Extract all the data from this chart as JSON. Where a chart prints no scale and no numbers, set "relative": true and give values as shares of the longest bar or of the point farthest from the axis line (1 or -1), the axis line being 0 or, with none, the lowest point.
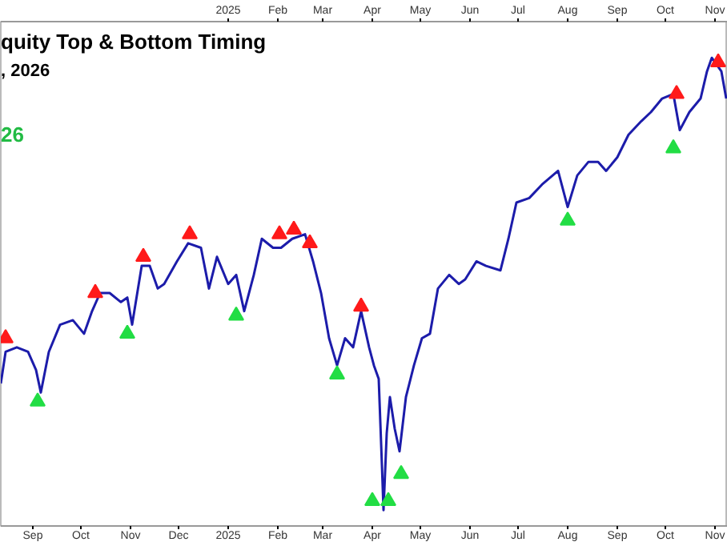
{
  "chart_data": {
    "type": "line",
    "title": "quity Top & Bottom Timing",
    "subtitle": ", 2026",
    "annotations": [
      "26"
    ],
    "relative": true,
    "xlim": [
      "2024-08-12",
      "2025-11-09"
    ],
    "xticks": [
      {
        "value": "2024-09-01",
        "label": "Sep"
      },
      {
        "value": "2024-10-01",
        "label": "Oct"
      },
      {
        "value": "2024-11-01",
        "label": "Nov"
      },
      {
        "value": "2024-12-01",
        "label": "Dec"
      },
      {
        "value": "2025-01-01",
        "label": "2025"
      },
      {
        "value": "2025-02-01",
        "label": "Feb"
      },
      {
        "value": "2025-03-01",
        "label": "Mar"
      },
      {
        "value": "2025-04-01",
        "label": "Apr"
      },
      {
        "value": "2025-05-01",
        "label": "May"
      },
      {
        "value": "2025-06-01",
        "label": "Jun"
      },
      {
        "value": "2025-07-01",
        "label": "Jul"
      },
      {
        "value": "2025-08-01",
        "label": "Aug"
      },
      {
        "value": "2025-09-01",
        "label": "Sep"
      },
      {
        "value": "2025-10-01",
        "label": "Oct"
      },
      {
        "value": "2025-11-01",
        "label": "Nov"
      }
    ],
    "x2lim": [
      "2024-08-12",
      "2025-11-09"
    ],
    "x2ticks": [
      {
        "value": "2025-01-01",
        "label": "2025"
      },
      {
        "value": "2025-02-01",
        "label": "Feb"
      },
      {
        "value": "2025-03-01",
        "label": "Mar"
      },
      {
        "value": "2025-04-01",
        "label": "Apr"
      },
      {
        "value": "2025-05-01",
        "label": "May"
      },
      {
        "value": "2025-06-01",
        "label": "Jun"
      },
      {
        "value": "2025-07-01",
        "label": "Jul"
      },
      {
        "value": "2025-08-01",
        "label": "Aug"
      },
      {
        "value": "2025-09-01",
        "label": "Sep"
      },
      {
        "value": "2025-10-01",
        "label": "Oct"
      },
      {
        "value": "2025-11-01",
        "label": "Nov"
      }
    ],
    "grid": false,
    "series": [
      {
        "color": "#1c1caa",
        "x": [
          "2024-08-12",
          "2024-08-15",
          "2024-08-22",
          "2024-08-29",
          "2024-09-03",
          "2024-09-06",
          "2024-09-11",
          "2024-09-18",
          "2024-09-26",
          "2024-10-03",
          "2024-10-08",
          "2024-10-13",
          "2024-10-19",
          "2024-10-26",
          "2024-10-30",
          "2024-11-02",
          "2024-11-08",
          "2024-11-13",
          "2024-11-18",
          "2024-11-22",
          "2024-11-30",
          "2024-12-07",
          "2024-12-15",
          "2024-12-20",
          "2024-12-25",
          "2025-01-01",
          "2025-01-06",
          "2025-01-11",
          "2025-01-17",
          "2025-01-22",
          "2025-01-29",
          "2025-02-03",
          "2025-02-10",
          "2025-02-18",
          "2025-02-23",
          "2025-02-28",
          "2025-03-05",
          "2025-03-10",
          "2025-03-15",
          "2025-03-20",
          "2025-03-25",
          "2025-03-30",
          "2025-04-02",
          "2025-04-05",
          "2025-04-07",
          "2025-04-08",
          "2025-04-10",
          "2025-04-12",
          "2025-04-15",
          "2025-04-18",
          "2025-04-22",
          "2025-04-27",
          "2025-05-02",
          "2025-05-07",
          "2025-05-12",
          "2025-05-19",
          "2025-05-25",
          "2025-05-29",
          "2025-06-05",
          "2025-06-11",
          "2025-06-20",
          "2025-06-25",
          "2025-06-30",
          "2025-07-08",
          "2025-07-16",
          "2025-07-26",
          "2025-08-01",
          "2025-08-07",
          "2025-08-14",
          "2025-08-20",
          "2025-08-25",
          "2025-09-01",
          "2025-09-08",
          "2025-09-16",
          "2025-09-22",
          "2025-09-29",
          "2025-10-06",
          "2025-10-10",
          "2025-10-16",
          "2025-10-23",
          "2025-10-27",
          "2025-10-30",
          "2025-11-05",
          "2025-11-08"
        ],
        "values": [
          0.28,
          0.35,
          0.36,
          0.35,
          0.31,
          0.26,
          0.35,
          0.41,
          0.42,
          0.39,
          0.44,
          0.48,
          0.48,
          0.46,
          0.47,
          0.41,
          0.54,
          0.54,
          0.49,
          0.5,
          0.55,
          0.59,
          0.58,
          0.49,
          0.56,
          0.5,
          0.52,
          0.44,
          0.52,
          0.6,
          0.58,
          0.58,
          0.6,
          0.61,
          0.55,
          0.48,
          0.38,
          0.32,
          0.38,
          0.36,
          0.44,
          0.36,
          0.32,
          0.29,
          0.1,
          0.0,
          0.17,
          0.25,
          0.18,
          0.13,
          0.25,
          0.32,
          0.38,
          0.39,
          0.49,
          0.52,
          0.5,
          0.51,
          0.55,
          0.54,
          0.53,
          0.6,
          0.68,
          0.69,
          0.72,
          0.75,
          0.67,
          0.74,
          0.77,
          0.77,
          0.75,
          0.78,
          0.83,
          0.86,
          0.88,
          0.91,
          0.92,
          0.84,
          0.88,
          0.91,
          0.97,
          1.0,
          0.97,
          0.91
        ]
      },
      {
        "type": "scatter",
        "color": "#ff1a1a",
        "marker": "triangle",
        "x": [
          "2024-08-15",
          "2024-10-10",
          "2024-11-09",
          "2024-12-08",
          "2025-02-02",
          "2025-02-11",
          "2025-02-21",
          "2025-03-25",
          "2025-10-08",
          "2025-11-03"
        ],
        "values": [
          0.38,
          0.48,
          0.56,
          0.61,
          0.61,
          0.62,
          0.59,
          0.45,
          0.92,
          0.99
        ]
      },
      {
        "type": "scatter",
        "color": "#22dd44",
        "marker": "triangle",
        "x": [
          "2024-09-04",
          "2024-10-30",
          "2025-01-06",
          "2025-03-10",
          "2025-04-01",
          "2025-04-11",
          "2025-04-19",
          "2025-08-01",
          "2025-10-06"
        ],
        "values": [
          0.24,
          0.39,
          0.43,
          0.3,
          0.02,
          0.02,
          0.08,
          0.64,
          0.8
        ]
      }
    ]
  }
}
